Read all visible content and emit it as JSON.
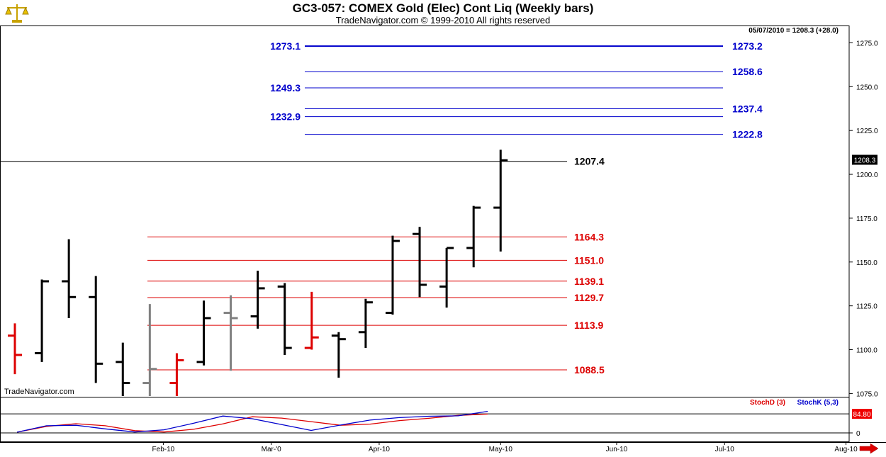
{
  "header": {
    "title": "GC3-057:  COMEX Gold (Elec) Cont Liq  (Weekly bars)",
    "subtitle": "TradeNavigator.com © 1999-2010 All rights reserved",
    "logo_icon": "gold-scale-icon"
  },
  "chart_data": {
    "type": "ohlc",
    "title": "GC3-057:  COMEX Gold (Elec) Cont Liq  (Weekly bars)",
    "last_info": "05/07/2010 = 1208.3 (+28.0)",
    "last_price": "1208.3",
    "watermark": "TradeNavigator.com",
    "ylim": [
      1073,
      1283
    ],
    "yticks": [
      "1075.0",
      "1100.0",
      "1125.0",
      "1150.0",
      "1175.0",
      "1200.0",
      "1225.0",
      "1250.0",
      "1275.0"
    ],
    "xlabels": [
      {
        "label": "Feb-10",
        "x": 5.5
      },
      {
        "label": "Mar-'0",
        "x": 9.5
      },
      {
        "label": "Apr-10",
        "x": 13.5
      },
      {
        "label": "May-10",
        "x": 18
      },
      {
        "label": "Jun-10",
        "x": 22.3
      },
      {
        "label": "Jul-10",
        "x": 26.3
      },
      {
        "label": "Aug-10",
        "x": 30.8
      }
    ],
    "bars": [
      {
        "o": 1108,
        "h": 1115,
        "l": 1086,
        "c": 1097,
        "color": "#dd0000"
      },
      {
        "o": 1098,
        "h": 1140,
        "l": 1093,
        "c": 1139,
        "color": "#000000"
      },
      {
        "o": 1139,
        "h": 1163,
        "l": 1118,
        "c": 1130,
        "color": "#000000"
      },
      {
        "o": 1130,
        "h": 1142,
        "l": 1081,
        "c": 1092,
        "color": "#000000"
      },
      {
        "o": 1093,
        "h": 1104,
        "l": 1070,
        "c": 1081,
        "color": "#000000"
      },
      {
        "o": 1081,
        "h": 1126,
        "l": 1070,
        "c": 1089,
        "color": "#808080"
      },
      {
        "o": 1081,
        "h": 1098,
        "l": 1070,
        "c": 1094,
        "color": "#dd0000"
      },
      {
        "o": 1093,
        "h": 1128,
        "l": 1091,
        "c": 1118,
        "color": "#000000"
      },
      {
        "o": 1121,
        "h": 1131,
        "l": 1088,
        "c": 1118,
        "color": "#808080"
      },
      {
        "o": 1119,
        "h": 1145,
        "l": 1112,
        "c": 1135,
        "color": "#000000"
      },
      {
        "o": 1136,
        "h": 1138,
        "l": 1097,
        "c": 1101,
        "color": "#000000"
      },
      {
        "o": 1101,
        "h": 1133,
        "l": 1100,
        "c": 1107,
        "color": "#dd0000"
      },
      {
        "o": 1108,
        "h": 1110,
        "l": 1084,
        "c": 1106,
        "color": "#000000"
      },
      {
        "o": 1110,
        "h": 1129,
        "l": 1101,
        "c": 1127,
        "color": "#000000"
      },
      {
        "o": 1121,
        "h": 1165,
        "l": 1120,
        "c": 1162,
        "color": "#000000"
      },
      {
        "o": 1166,
        "h": 1170,
        "l": 1130,
        "c": 1137,
        "color": "#000000"
      },
      {
        "o": 1136,
        "h": 1158,
        "l": 1124,
        "c": 1158,
        "color": "#000000"
      },
      {
        "o": 1158,
        "h": 1182,
        "l": 1147,
        "c": 1181,
        "color": "#000000"
      },
      {
        "o": 1181,
        "h": 1214,
        "l": 1156,
        "c": 1208,
        "color": "#000000"
      }
    ],
    "blue_levels": [
      {
        "value": 1273.1,
        "label": "1273.1",
        "side": "left"
      },
      {
        "value": 1273.2,
        "label": "1273.2",
        "side": "right"
      },
      {
        "value": 1258.6,
        "label": "1258.6",
        "side": "right"
      },
      {
        "value": 1249.3,
        "label": "1249.3",
        "side": "left"
      },
      {
        "value": 1237.4,
        "label": "1237.4",
        "side": "right"
      },
      {
        "value": 1232.9,
        "label": "1232.9",
        "side": "left"
      },
      {
        "value": 1222.8,
        "label": "1222.8",
        "side": "right"
      }
    ],
    "black_level": {
      "value": 1207.4,
      "label": "1207.4"
    },
    "red_levels": [
      {
        "value": 1164.3,
        "label": "1164.3"
      },
      {
        "value": 1151.0,
        "label": "1151.0"
      },
      {
        "value": 1139.1,
        "label": "1139.1"
      },
      {
        "value": 1129.7,
        "label": "1129.7"
      },
      {
        "value": 1113.9,
        "label": "1113.9"
      },
      {
        "value": 1088.5,
        "label": "1088.5"
      }
    ],
    "stochastic": {
      "labels": {
        "d": "StochD (3)",
        "k": "StochK (5,3)"
      },
      "value_label": "84.80",
      "zero_label": "0",
      "d_values": [
        3,
        29,
        41,
        32,
        10,
        4,
        16,
        40,
        72,
        66,
        50,
        34,
        39,
        55,
        65,
        78,
        84
      ],
      "k_values": [
        3,
        32,
        34,
        18,
        4,
        14,
        43,
        75,
        63,
        37,
        11,
        35,
        57,
        68,
        74,
        76,
        96
      ]
    }
  },
  "colors": {
    "blue": "#0000cc",
    "red": "#dd0000",
    "black": "#000000",
    "gray": "#808080",
    "stoch_tag": "#ee0000"
  }
}
